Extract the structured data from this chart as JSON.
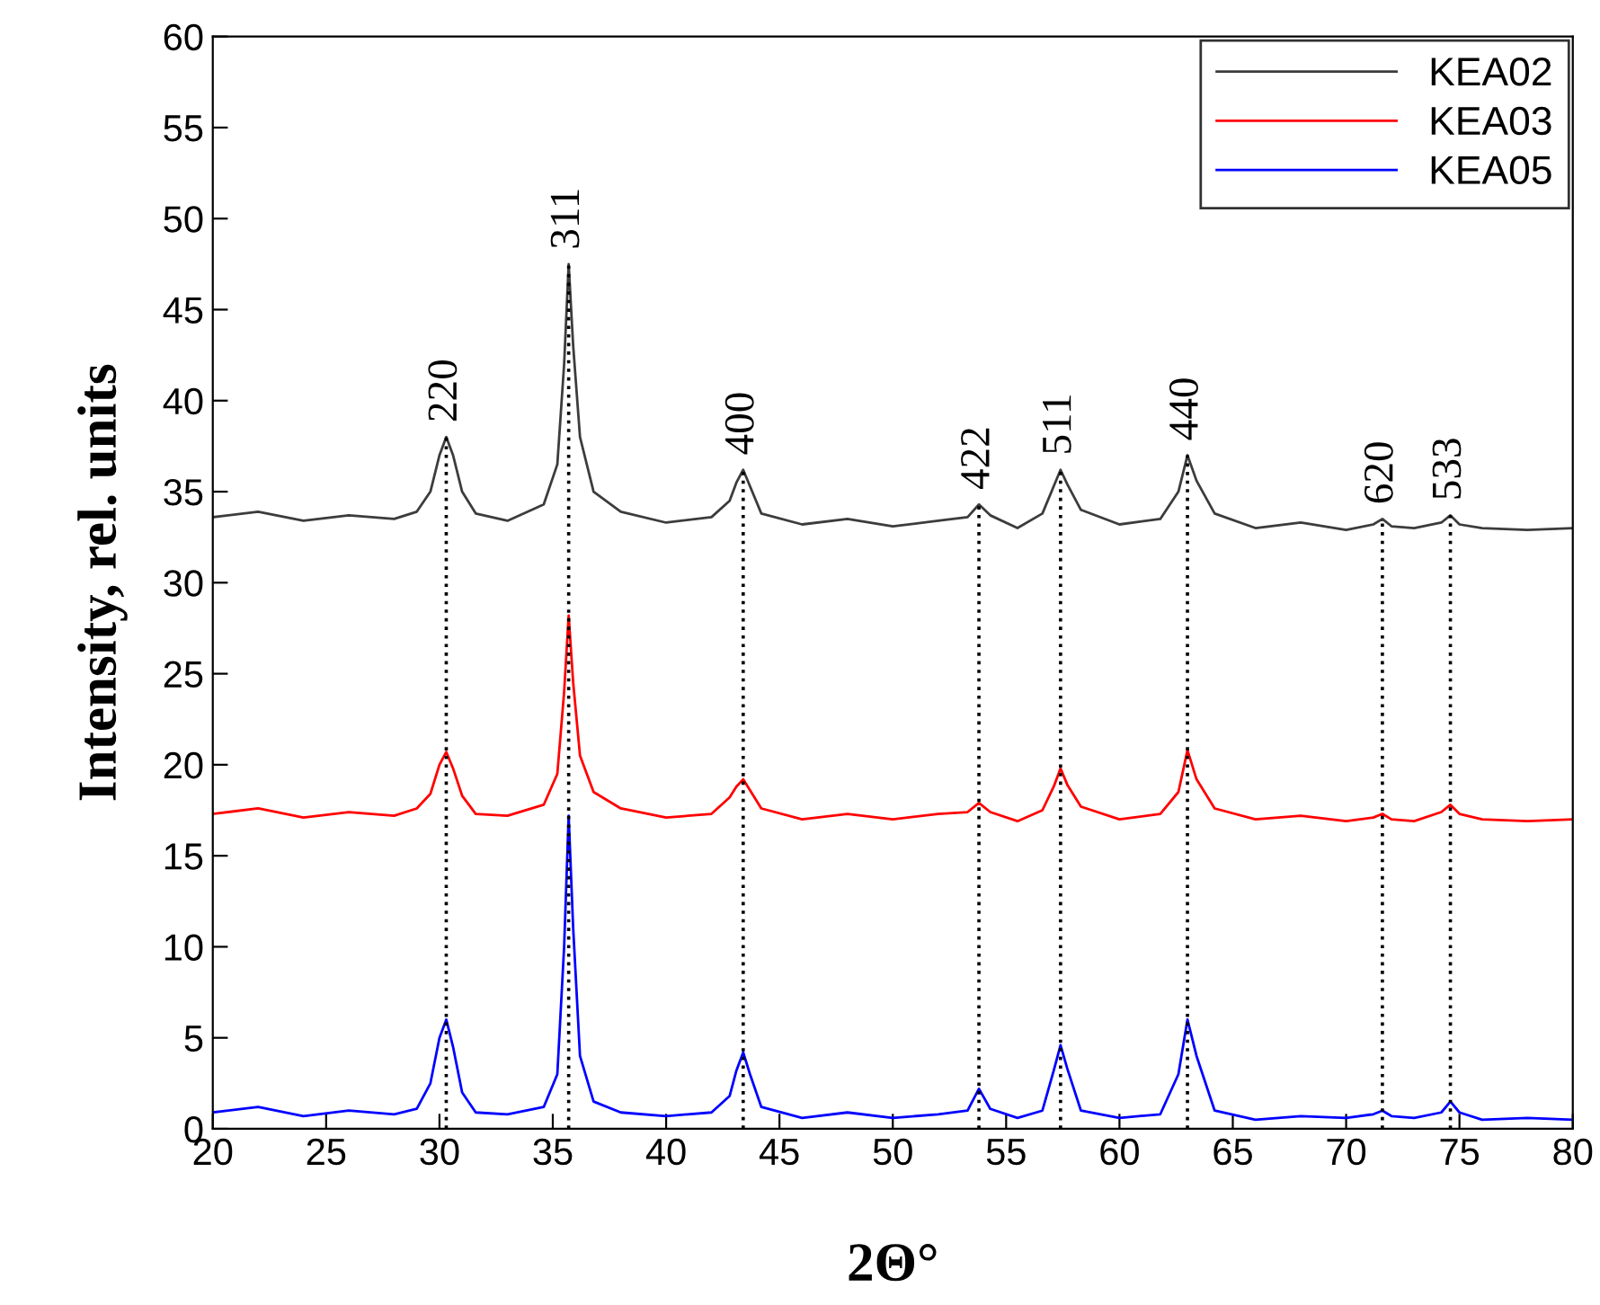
{
  "chart_data": {
    "type": "line",
    "xlabel": "2Θ°",
    "ylabel": "Intensity, rel. units",
    "x": [
      20,
      22,
      24,
      26,
      28,
      29,
      29.6,
      30,
      30.3,
      30.6,
      31,
      31.6,
      33,
      34.6,
      35.2,
      35.5,
      35.7,
      35.9,
      36.2,
      36.8,
      38,
      40,
      42,
      42.8,
      43.1,
      43.4,
      43.7,
      44.2,
      46,
      48,
      50,
      52,
      53.3,
      53.8,
      54.3,
      55.5,
      56.6,
      57.1,
      57.4,
      57.7,
      58.3,
      60,
      61.8,
      62.6,
      63.0,
      63.4,
      64.2,
      66,
      68,
      70,
      71.2,
      71.6,
      72.0,
      73,
      74.2,
      74.6,
      75.0,
      76,
      78,
      80
    ],
    "series": [
      {
        "name": "KEA02",
        "color": "#3c3c3c",
        "values": [
          33.6,
          33.9,
          33.4,
          33.7,
          33.5,
          33.9,
          35.0,
          37.0,
          38.0,
          37.0,
          35.0,
          33.8,
          33.4,
          34.3,
          36.5,
          42.0,
          47.5,
          43.0,
          38.0,
          35.0,
          33.9,
          33.3,
          33.6,
          34.5,
          35.5,
          36.2,
          35.3,
          33.8,
          33.2,
          33.5,
          33.1,
          33.4,
          33.6,
          34.3,
          33.7,
          33.0,
          33.8,
          35.3,
          36.2,
          35.4,
          34.0,
          33.2,
          33.5,
          35.0,
          37.0,
          35.6,
          33.8,
          33.0,
          33.3,
          32.9,
          33.2,
          33.5,
          33.1,
          33.0,
          33.3,
          33.7,
          33.2,
          33.0,
          32.9,
          33.0
        ]
      },
      {
        "name": "KEA03",
        "color": "#ff0000",
        "values": [
          17.3,
          17.6,
          17.1,
          17.4,
          17.2,
          17.6,
          18.4,
          20.0,
          20.7,
          19.8,
          18.3,
          17.3,
          17.2,
          17.8,
          19.5,
          24.0,
          28.2,
          24.5,
          20.5,
          18.5,
          17.6,
          17.1,
          17.3,
          18.2,
          18.8,
          19.2,
          18.6,
          17.6,
          17.0,
          17.3,
          17.0,
          17.3,
          17.4,
          17.9,
          17.4,
          16.9,
          17.5,
          18.8,
          19.8,
          18.9,
          17.7,
          17.0,
          17.3,
          18.5,
          20.8,
          19.2,
          17.6,
          17.0,
          17.2,
          16.9,
          17.1,
          17.3,
          17.0,
          16.9,
          17.4,
          17.8,
          17.3,
          17.0,
          16.9,
          17.0
        ]
      },
      {
        "name": "KEA05",
        "color": "#0000ff",
        "values": [
          0.9,
          1.2,
          0.7,
          1.0,
          0.8,
          1.1,
          2.5,
          5.0,
          6.0,
          4.5,
          2.0,
          0.9,
          0.8,
          1.2,
          3.0,
          10.0,
          17.2,
          11.0,
          4.0,
          1.5,
          0.9,
          0.7,
          0.9,
          1.8,
          3.2,
          4.2,
          3.0,
          1.2,
          0.6,
          0.9,
          0.6,
          0.8,
          1.0,
          2.2,
          1.1,
          0.6,
          1.0,
          3.2,
          4.6,
          3.3,
          1.0,
          0.6,
          0.8,
          3.0,
          6.0,
          4.0,
          1.0,
          0.5,
          0.7,
          0.6,
          0.8,
          1.0,
          0.7,
          0.6,
          0.9,
          1.5,
          0.9,
          0.5,
          0.6,
          0.5
        ]
      }
    ],
    "ref_lines": [
      {
        "axis": "x",
        "value": 30.3,
        "color": "#000000",
        "line_style": "dotted"
      },
      {
        "axis": "x",
        "value": 35.7,
        "color": "#000000",
        "line_style": "dotted"
      },
      {
        "axis": "x",
        "value": 43.4,
        "color": "#000000",
        "line_style": "dotted"
      },
      {
        "axis": "x",
        "value": 53.8,
        "color": "#000000",
        "line_style": "dotted"
      },
      {
        "axis": "x",
        "value": 57.4,
        "color": "#000000",
        "line_style": "dotted"
      },
      {
        "axis": "x",
        "value": 63.0,
        "color": "#000000",
        "line_style": "dotted"
      },
      {
        "axis": "x",
        "value": 71.6,
        "color": "#000000",
        "line_style": "dotted"
      },
      {
        "axis": "x",
        "value": 74.6,
        "color": "#000000",
        "line_style": "dotted"
      }
    ],
    "annotations": [
      {
        "text": "220",
        "x": 30.3,
        "y": 38.0
      },
      {
        "text": "311",
        "x": 35.7,
        "y": 47.5
      },
      {
        "text": "400",
        "x": 43.4,
        "y": 36.2
      },
      {
        "text": "422",
        "x": 53.8,
        "y": 34.3
      },
      {
        "text": "511",
        "x": 57.4,
        "y": 36.2
      },
      {
        "text": "440",
        "x": 63.0,
        "y": 37.0
      },
      {
        "text": "620",
        "x": 71.6,
        "y": 33.5
      },
      {
        "text": "533",
        "x": 74.6,
        "y": 33.7
      }
    ],
    "xlim": [
      20,
      80
    ],
    "xticks": [
      20,
      25,
      30,
      35,
      40,
      45,
      50,
      55,
      60,
      65,
      70,
      75,
      80
    ],
    "ylim": [
      0,
      60
    ],
    "yticks": [
      0,
      5,
      10,
      15,
      20,
      25,
      30,
      35,
      40,
      45,
      50,
      55,
      60
    ],
    "legend": "top right",
    "grid": false,
    "marker": "none",
    "line_style": "solid"
  }
}
